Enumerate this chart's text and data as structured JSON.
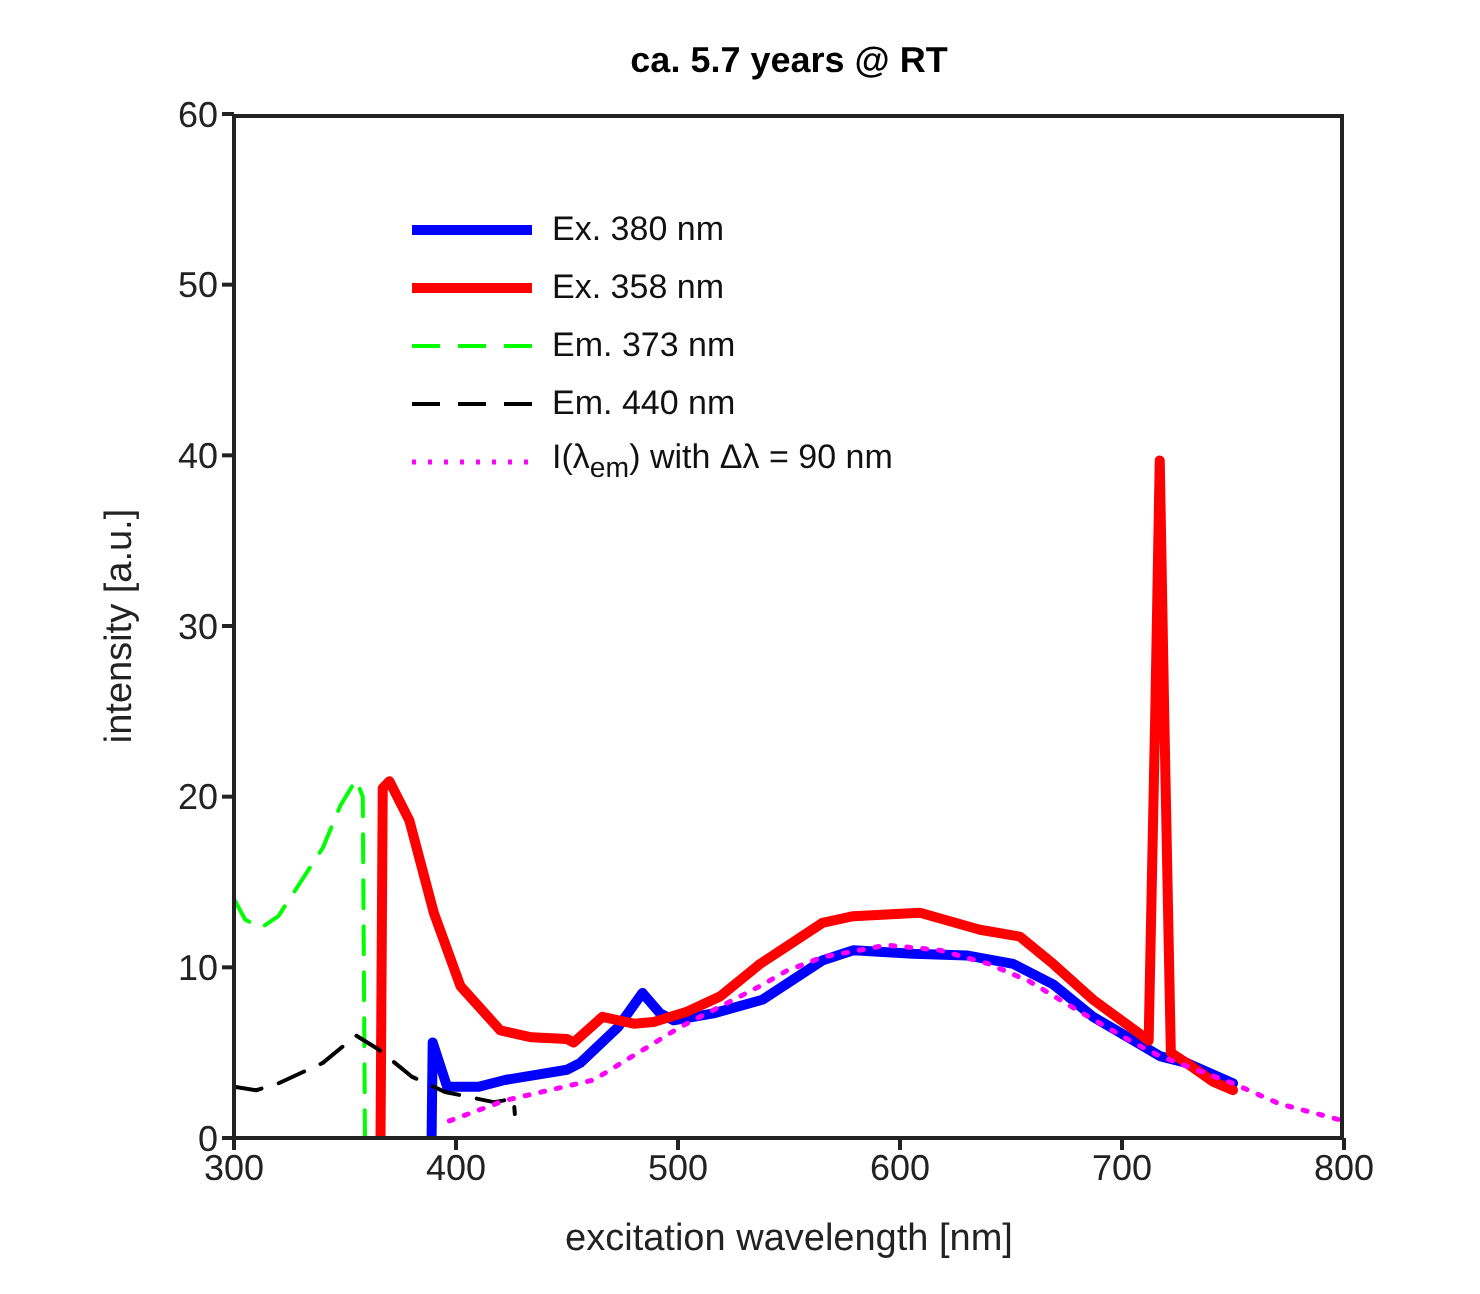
{
  "chart_data": {
    "type": "line",
    "title": "ca. 5.7 years @ RT",
    "xlabel": "excitation wavelength [nm]",
    "ylabel": "intensity [a.u.]",
    "xlim": [
      300,
      800
    ],
    "xticks": [
      300,
      400,
      500,
      600,
      700,
      800
    ],
    "ylim": [
      0,
      60
    ],
    "yticks": [
      0,
      10,
      20,
      30,
      40,
      50,
      60
    ],
    "legend": "top left",
    "marker": "none",
    "series": [
      {
        "name": "Ex. 380 nm",
        "color": "#0000ff",
        "line_style": "solid",
        "x": [
          389,
          389.5,
          396,
          410,
          422,
          450,
          456,
          473,
          484,
          492,
          498,
          516,
          538,
          565,
          579,
          606,
          630,
          651,
          669,
          687,
          708,
          717,
          729,
          750
        ],
        "values": [
          0,
          5.6,
          3.0,
          3.0,
          3.4,
          4.0,
          4.4,
          6.5,
          8.5,
          7.3,
          6.9,
          7.3,
          8.1,
          10.4,
          11.0,
          10.8,
          10.7,
          10.2,
          9.0,
          7.1,
          5.5,
          4.8,
          4.4,
          3.2
        ]
      },
      {
        "name": "Ex. 358 nm",
        "color": "#ff0000",
        "line_style": "solid",
        "x": [
          366,
          367,
          370,
          379,
          390,
          402,
          420,
          434,
          450,
          453,
          466,
          480,
          489,
          504,
          519,
          537,
          565,
          579,
          609,
          636,
          654,
          669,
          687,
          708,
          712,
          715,
          717,
          719,
          722,
          729,
          741,
          750
        ],
        "values": [
          0,
          20.5,
          20.9,
          18.6,
          13.2,
          8.9,
          6.3,
          5.9,
          5.8,
          5.6,
          7.1,
          6.7,
          6.8,
          7.4,
          8.3,
          10.2,
          12.6,
          13.0,
          13.2,
          12.2,
          11.8,
          10.2,
          8.1,
          6.1,
          5.7,
          25,
          39.7,
          25,
          5.0,
          4.4,
          3.3,
          2.8
        ]
      },
      {
        "name": "Em. 373 nm",
        "color": "#00ff00",
        "line_style": "dashed",
        "x": [
          300,
          305,
          312,
          320,
          330,
          340,
          348,
          355,
          358,
          359
        ],
        "values": [
          14,
          12.8,
          12.3,
          13,
          15,
          17,
          19.5,
          21,
          20,
          0
        ]
      },
      {
        "name": "Em. 440 nm",
        "color": "#000000",
        "line_style": "dashed",
        "x": [
          300,
          310,
          320,
          340,
          355,
          365,
          380,
          395,
          417,
          426,
          426.5
        ],
        "values": [
          3.0,
          2.8,
          3.2,
          4.4,
          6.0,
          5.2,
          3.6,
          2.7,
          2.1,
          2.3,
          1.4
        ]
      },
      {
        "name": "I(λ$_{em}$) with Δλ = 90 nm",
        "color": "#ff00ff",
        "line_style": "dotted",
        "x": [
          397,
          422,
          462,
          501,
          537,
          549,
          565,
          594,
          618,
          640,
          658,
          681,
          705,
          717,
          750,
          771,
          800
        ],
        "values": [
          1.0,
          2.2,
          3.4,
          6.5,
          8.9,
          9.8,
          10.6,
          11.3,
          11.0,
          10.2,
          9.2,
          7.4,
          5.6,
          4.8,
          3.2,
          2.0,
          1.0
        ]
      }
    ]
  }
}
